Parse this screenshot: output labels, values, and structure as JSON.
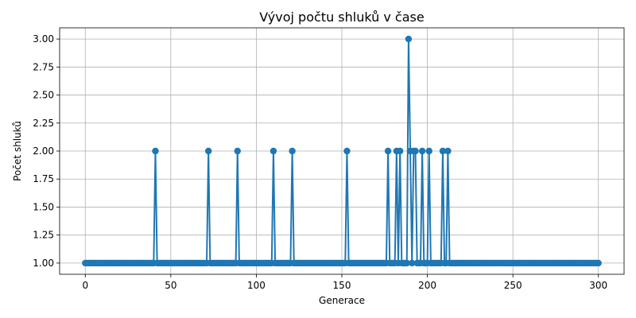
{
  "chart_data": {
    "type": "line",
    "title": "Vývoj počtu shluků v čase",
    "xlabel": "Generace",
    "ylabel": "Počet shluků",
    "xlim": [
      -15,
      315
    ],
    "ylim": [
      0.9,
      3.1
    ],
    "xticks": [
      0,
      50,
      100,
      150,
      200,
      250,
      300
    ],
    "xtick_labels": [
      "0",
      "50",
      "100",
      "150",
      "200",
      "250",
      "300"
    ],
    "yticks": [
      1.0,
      1.25,
      1.5,
      1.75,
      2.0,
      2.25,
      2.5,
      2.75,
      3.0
    ],
    "ytick_labels": [
      "1.00",
      "1.25",
      "1.50",
      "1.75",
      "2.00",
      "2.25",
      "2.50",
      "2.75",
      "3.00"
    ],
    "grid": true,
    "marker": "circle",
    "color": "#1f77b4",
    "x_start": 0,
    "x_end": 300,
    "baseline_value": 1,
    "peaks": [
      {
        "x": 41,
        "y": 2
      },
      {
        "x": 72,
        "y": 2
      },
      {
        "x": 89,
        "y": 2
      },
      {
        "x": 110,
        "y": 2
      },
      {
        "x": 121,
        "y": 2
      },
      {
        "x": 153,
        "y": 2
      },
      {
        "x": 177,
        "y": 2
      },
      {
        "x": 182,
        "y": 2
      },
      {
        "x": 184,
        "y": 2
      },
      {
        "x": 189,
        "y": 3
      },
      {
        "x": 190,
        "y": 2
      },
      {
        "x": 192,
        "y": 2
      },
      {
        "x": 193,
        "y": 2
      },
      {
        "x": 197,
        "y": 2
      },
      {
        "x": 201,
        "y": 2
      },
      {
        "x": 209,
        "y": 2
      },
      {
        "x": 212,
        "y": 2
      }
    ]
  }
}
